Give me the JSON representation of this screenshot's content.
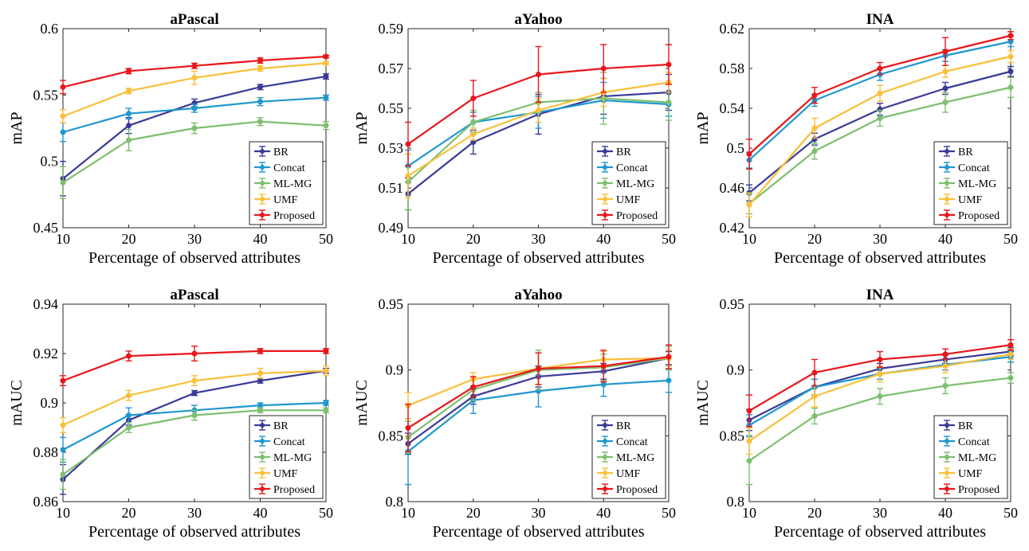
{
  "colors": {
    "BR": "#3a3a98",
    "Concat": "#1f97cf",
    "ML-MG": "#7dbf6e",
    "UMF": "#f8c03a",
    "Proposed": "#e8161b"
  },
  "chart_data": [
    {
      "type": "line",
      "title": "aPascal",
      "xlabel": "Percentage of observed attributes",
      "ylabel": "mAP",
      "x": [
        10,
        20,
        30,
        40,
        50
      ],
      "xticks": [
        "10",
        "20",
        "30",
        "40",
        "50"
      ],
      "ylim": [
        0.45,
        0.6
      ],
      "yticks": [
        "0.45",
        "0.5",
        "0.55",
        "0.6"
      ],
      "ytick_values": [
        0.45,
        0.5,
        0.55,
        0.6
      ],
      "legend_position": "bottom-right",
      "series": [
        {
          "name": "BR",
          "values": [
            0.487,
            0.527,
            0.544,
            0.556,
            0.564
          ],
          "err": [
            0.013,
            0.006,
            0.003,
            0.002,
            0.002
          ]
        },
        {
          "name": "Concat",
          "values": [
            0.522,
            0.536,
            0.54,
            0.545,
            0.548
          ],
          "err": [
            0.007,
            0.004,
            0.003,
            0.003,
            0.002
          ]
        },
        {
          "name": "ML-MG",
          "values": [
            0.484,
            0.516,
            0.525,
            0.53,
            0.527
          ],
          "err": [
            0.012,
            0.008,
            0.004,
            0.003,
            0.003
          ]
        },
        {
          "name": "UMF",
          "values": [
            0.534,
            0.553,
            0.563,
            0.57,
            0.574
          ],
          "err": [
            0.005,
            0.002,
            0.005,
            0.002,
            0.001
          ]
        },
        {
          "name": "Proposed",
          "values": [
            0.556,
            0.568,
            0.572,
            0.576,
            0.579
          ],
          "err": [
            0.005,
            0.002,
            0.002,
            0.002,
            0.001
          ]
        }
      ]
    },
    {
      "type": "line",
      "title": "aYahoo",
      "xlabel": "Percentage of observed attributes",
      "ylabel": "mAP",
      "x": [
        10,
        20,
        30,
        40,
        50
      ],
      "xticks": [
        "10",
        "20",
        "30",
        "40",
        "50"
      ],
      "ylim": [
        0.49,
        0.59
      ],
      "yticks": [
        "0.49",
        "0.51",
        "0.53",
        "0.55",
        "0.57",
        "0.59"
      ],
      "ytick_values": [
        0.49,
        0.51,
        0.53,
        0.55,
        0.57,
        0.59
      ],
      "legend_position": "bottom-right",
      "series": [
        {
          "name": "BR",
          "values": [
            0.507,
            0.533,
            0.547,
            0.556,
            0.558
          ],
          "err": [
            0.008,
            0.006,
            0.01,
            0.009,
            0.009
          ]
        },
        {
          "name": "Concat",
          "values": [
            0.521,
            0.543,
            0.548,
            0.554,
            0.552
          ],
          "err": [
            0.008,
            0.005,
            0.008,
            0.009,
            0.006
          ]
        },
        {
          "name": "ML-MG",
          "values": [
            0.513,
            0.543,
            0.553,
            0.555,
            0.553
          ],
          "err": [
            0.014,
            0.006,
            0.005,
            0.013,
            0.009
          ]
        },
        {
          "name": "UMF",
          "values": [
            0.516,
            0.537,
            0.549,
            0.558,
            0.563
          ],
          "err": [
            0.011,
            0.003,
            0.006,
            0.007,
            0.005
          ]
        },
        {
          "name": "Proposed",
          "values": [
            0.532,
            0.555,
            0.567,
            0.57,
            0.572
          ],
          "err": [
            0.011,
            0.009,
            0.014,
            0.012,
            0.01
          ]
        }
      ]
    },
    {
      "type": "line",
      "title": "INA",
      "xlabel": "Percentage of observed attributes",
      "ylabel": "mAP",
      "x": [
        10,
        20,
        30,
        40,
        50
      ],
      "xticks": [
        "10",
        "20",
        "30",
        "40",
        "50"
      ],
      "ylim": [
        0.42,
        0.62
      ],
      "yticks": [
        "0.42",
        "0.46",
        "0.5",
        "0.54",
        "0.58",
        "0.62"
      ],
      "ytick_values": [
        0.42,
        0.46,
        0.5,
        0.54,
        0.58,
        0.62
      ],
      "legend_position": "bottom-right",
      "series": [
        {
          "name": "BR",
          "values": [
            0.455,
            0.509,
            0.539,
            0.56,
            0.577
          ],
          "err": [
            0.008,
            0.006,
            0.006,
            0.006,
            0.005
          ]
        },
        {
          "name": "Concat",
          "values": [
            0.488,
            0.548,
            0.574,
            0.593,
            0.607
          ],
          "err": [
            0.008,
            0.006,
            0.006,
            0.006,
            0.005
          ]
        },
        {
          "name": "ML-MG",
          "values": [
            0.444,
            0.497,
            0.53,
            0.546,
            0.561
          ],
          "err": [
            0.01,
            0.008,
            0.008,
            0.01,
            0.01
          ]
        },
        {
          "name": "UMF",
          "values": [
            0.443,
            0.52,
            0.555,
            0.577,
            0.592
          ],
          "err": [
            0.012,
            0.01,
            0.008,
            0.006,
            0.006
          ]
        },
        {
          "name": "Proposed",
          "values": [
            0.494,
            0.553,
            0.58,
            0.597,
            0.613
          ],
          "err": [
            0.015,
            0.008,
            0.006,
            0.014,
            0.004
          ]
        }
      ]
    },
    {
      "type": "line",
      "title": "aPascal",
      "xlabel": "Percentage of observed attributes",
      "ylabel": "mAUC",
      "x": [
        10,
        20,
        30,
        40,
        50
      ],
      "xticks": [
        "10",
        "20",
        "30",
        "40",
        "50"
      ],
      "ylim": [
        0.86,
        0.94
      ],
      "yticks": [
        "0.86",
        "0.88",
        "0.9",
        "0.92",
        "0.94"
      ],
      "ytick_values": [
        0.86,
        0.88,
        0.9,
        0.92,
        0.94
      ],
      "legend_position": "bottom-right",
      "series": [
        {
          "name": "BR",
          "values": [
            0.869,
            0.893,
            0.904,
            0.909,
            0.913
          ],
          "err": [
            0.006,
            0.002,
            0.001,
            0.001,
            0.001
          ]
        },
        {
          "name": "Concat",
          "values": [
            0.881,
            0.895,
            0.897,
            0.899,
            0.9
          ],
          "err": [
            0.005,
            0.003,
            0.002,
            0.001,
            0.001
          ]
        },
        {
          "name": "ML-MG",
          "values": [
            0.871,
            0.89,
            0.895,
            0.897,
            0.897
          ],
          "err": [
            0.006,
            0.002,
            0.002,
            0.001,
            0.001
          ]
        },
        {
          "name": "UMF",
          "values": [
            0.891,
            0.903,
            0.909,
            0.912,
            0.913
          ],
          "err": [
            0.003,
            0.002,
            0.002,
            0.002,
            0.002
          ]
        },
        {
          "name": "Proposed",
          "values": [
            0.909,
            0.919,
            0.92,
            0.921,
            0.921
          ],
          "err": [
            0.002,
            0.002,
            0.003,
            0.001,
            0.001
          ]
        }
      ]
    },
    {
      "type": "line",
      "title": "aYahoo",
      "xlabel": "Percentage of observed attributes",
      "ylabel": "mAUC",
      "x": [
        10,
        20,
        30,
        40,
        50
      ],
      "xticks": [
        "10",
        "20",
        "30",
        "40",
        "50"
      ],
      "ylim": [
        0.8,
        0.95
      ],
      "yticks": [
        "0.8",
        "0.85",
        "0.9",
        "0.95"
      ],
      "ytick_values": [
        0.8,
        0.85,
        0.9,
        0.95
      ],
      "legend_position": "bottom-right",
      "series": [
        {
          "name": "BR",
          "values": [
            0.844,
            0.88,
            0.895,
            0.899,
            0.909
          ],
          "err": [
            0.008,
            0.006,
            0.008,
            0.006,
            0.005
          ]
        },
        {
          "name": "Concat",
          "values": [
            0.838,
            0.877,
            0.884,
            0.889,
            0.892
          ],
          "err": [
            0.025,
            0.01,
            0.012,
            0.009,
            0.009
          ]
        },
        {
          "name": "ML-MG",
          "values": [
            0.849,
            0.885,
            0.9,
            0.902,
            0.909
          ],
          "err": [
            0.012,
            0.008,
            0.015,
            0.01,
            0.009
          ]
        },
        {
          "name": "UMF",
          "values": [
            0.873,
            0.893,
            0.901,
            0.908,
            0.909
          ],
          "err": [
            0.01,
            0.005,
            0.012,
            0.006,
            0.006
          ]
        },
        {
          "name": "Proposed",
          "values": [
            0.856,
            0.887,
            0.901,
            0.903,
            0.91
          ],
          "err": [
            0.018,
            0.008,
            0.012,
            0.012,
            0.009
          ]
        }
      ]
    },
    {
      "type": "line",
      "title": "INA",
      "xlabel": "Percentage of observed attributes",
      "ylabel": "mAUC",
      "x": [
        10,
        20,
        30,
        40,
        50
      ],
      "xticks": [
        "10",
        "20",
        "30",
        "40",
        "50"
      ],
      "ylim": [
        0.8,
        0.95
      ],
      "yticks": [
        "0.8",
        "0.85",
        "0.9",
        "0.95"
      ],
      "ytick_values": [
        0.8,
        0.85,
        0.9,
        0.95
      ],
      "legend_position": "bottom-right",
      "series": [
        {
          "name": "BR",
          "values": [
            0.862,
            0.887,
            0.901,
            0.908,
            0.914
          ],
          "err": [
            0.008,
            0.006,
            0.004,
            0.003,
            0.003
          ]
        },
        {
          "name": "Concat",
          "values": [
            0.858,
            0.887,
            0.897,
            0.904,
            0.91
          ],
          "err": [
            0.008,
            0.006,
            0.004,
            0.004,
            0.004
          ]
        },
        {
          "name": "ML-MG",
          "values": [
            0.831,
            0.865,
            0.88,
            0.888,
            0.894
          ],
          "err": [
            0.018,
            0.006,
            0.006,
            0.006,
            0.004
          ]
        },
        {
          "name": "UMF",
          "values": [
            0.846,
            0.88,
            0.897,
            0.903,
            0.912
          ],
          "err": [
            0.01,
            0.008,
            0.006,
            0.005,
            0.004
          ]
        },
        {
          "name": "Proposed",
          "values": [
            0.869,
            0.898,
            0.908,
            0.912,
            0.919
          ],
          "err": [
            0.012,
            0.01,
            0.006,
            0.004,
            0.004
          ]
        }
      ]
    }
  ]
}
